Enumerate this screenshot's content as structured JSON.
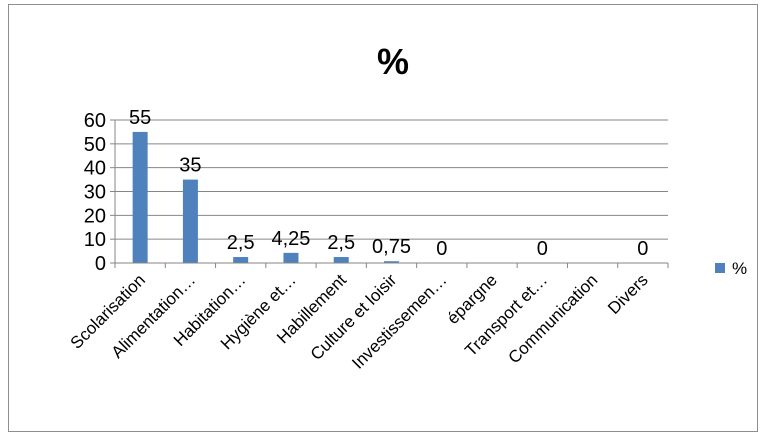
{
  "chart_data": {
    "type": "bar",
    "title": "%",
    "categories": [
      "Scolarisation",
      "Alimentation…",
      "Habitation…",
      "Hygiène et…",
      "Habillement",
      "Culture et loisir",
      "Investissemen…",
      "épargne",
      "Transport et…",
      "Communication",
      "Divers"
    ],
    "series": [
      {
        "name": "%",
        "values": [
          55,
          35,
          2.5,
          4.25,
          2.5,
          0.75,
          0,
          0,
          0,
          0,
          0
        ],
        "data_labels": [
          "55",
          "35",
          "2,5",
          "4,25",
          "2,5",
          "0,75",
          "0",
          "",
          "0",
          "",
          "0"
        ]
      }
    ],
    "ylim": [
      0,
      60
    ],
    "yticks": [
      0,
      10,
      20,
      30,
      40,
      50,
      60
    ],
    "grid": true,
    "legend_position": "right",
    "colors": {
      "bar": "#4f81bd",
      "grid": "#868686",
      "axis": "#868686"
    }
  }
}
